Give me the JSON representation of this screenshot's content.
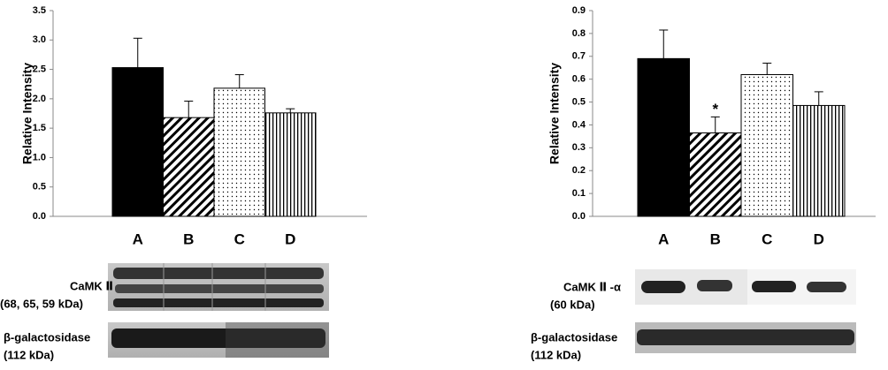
{
  "chart_data": [
    {
      "type": "bar",
      "ylabel": "Relative Intensity",
      "categories": [
        "A",
        "B",
        "C",
        "D"
      ],
      "values": [
        2.53,
        1.68,
        2.18,
        1.76
      ],
      "errors": [
        0.5,
        0.28,
        0.23,
        0.07
      ],
      "patterns": [
        "solid",
        "diagonal",
        "dots",
        "vertical"
      ],
      "color": "#000000",
      "ylim": [
        0,
        3.5
      ],
      "yticks": [
        {
          "value": 0,
          "label": "0.0"
        },
        0.5,
        {
          "value": 1,
          "label": "1.0"
        },
        1.5,
        {
          "value": 2,
          "label": "2.0"
        },
        2.5,
        {
          "value": 3,
          "label": "3.0"
        },
        3.5
      ]
    },
    {
      "type": "bar",
      "ylabel": "Relative Intensity",
      "categories": [
        "A",
        "B",
        "C",
        "D"
      ],
      "values": [
        0.69,
        0.365,
        0.62,
        0.485
      ],
      "errors": [
        0.125,
        0.07,
        0.05,
        0.06
      ],
      "patterns": [
        "solid",
        "diagonal",
        "dots",
        "vertical"
      ],
      "color": "#000000",
      "annotation": "*",
      "ylim": [
        0,
        0.9
      ],
      "yticks": [
        {
          "value": 0,
          "label": "0.0"
        },
        0.1,
        0.2,
        0.3,
        0.4,
        0.5,
        0.6,
        0.7,
        0.8,
        0.9
      ]
    }
  ],
  "blots": [
    {
      "target": "CaMK Ⅱ",
      "target_size": "(68, 65, 59 kDa)",
      "control": "β-galactosidase",
      "control_size": "(112 kDa)"
    },
    {
      "target": "CaMK Ⅱ -α",
      "target_size": "(60 kDa)",
      "control": "β-galactosidase",
      "control_size": "(112 kDa)"
    }
  ]
}
